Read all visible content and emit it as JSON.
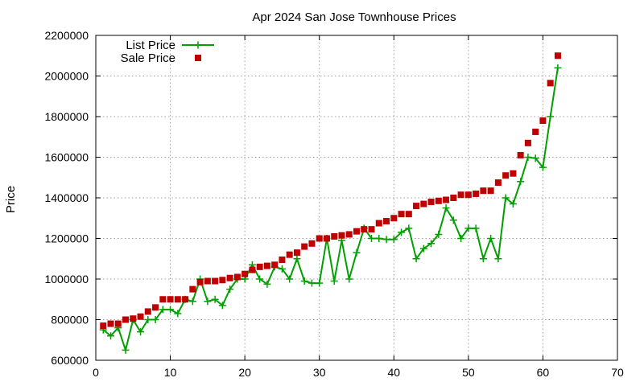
{
  "chart_data": {
    "type": "line",
    "title": "Apr 2024 San Jose Townhouse Prices",
    "xlabel": "",
    "ylabel": "Price",
    "xlim": [
      0,
      70
    ],
    "ylim": [
      600000,
      2200000
    ],
    "x_ticks": [
      0,
      10,
      20,
      30,
      40,
      50,
      60,
      70
    ],
    "y_ticks": [
      600000,
      800000,
      1000000,
      1200000,
      1400000,
      1600000,
      1800000,
      2000000,
      2200000
    ],
    "grid": true,
    "legend_position": "top-left",
    "series": [
      {
        "name": "List Price",
        "style": "linespoints",
        "color": "#00a000",
        "marker": "plus",
        "x": [
          1,
          2,
          3,
          4,
          5,
          6,
          7,
          8,
          9,
          10,
          11,
          12,
          13,
          14,
          15,
          16,
          17,
          18,
          19,
          20,
          21,
          22,
          23,
          24,
          25,
          26,
          27,
          28,
          29,
          30,
          31,
          32,
          33,
          34,
          35,
          36,
          37,
          38,
          39,
          40,
          41,
          42,
          43,
          44,
          45,
          46,
          47,
          48,
          49,
          50,
          51,
          52,
          53,
          54,
          55,
          56,
          57,
          58,
          59,
          60,
          61,
          62
        ],
        "values": [
          750000,
          720000,
          760000,
          650000,
          800000,
          740000,
          800000,
          800000,
          850000,
          850000,
          830000,
          900000,
          890000,
          1000000,
          890000,
          900000,
          870000,
          950000,
          1000000,
          1000000,
          1070000,
          1000000,
          975000,
          1060000,
          1050000,
          1000000,
          1100000,
          990000,
          980000,
          980000,
          1200000,
          990000,
          1190000,
          1000000,
          1130000,
          1250000,
          1200000,
          1200000,
          1195000,
          1195000,
          1230000,
          1250000,
          1100000,
          1150000,
          1175000,
          1220000,
          1350000,
          1290000,
          1200000,
          1250000,
          1250000,
          1100000,
          1200000,
          1100000,
          1400000,
          1370000,
          1480000,
          1600000,
          1595000,
          1550000,
          1800000,
          2040000
        ]
      },
      {
        "name": "Sale Price",
        "style": "points",
        "color": "#c00000",
        "marker": "square",
        "x": [
          1,
          2,
          3,
          4,
          5,
          6,
          7,
          8,
          9,
          10,
          11,
          12,
          13,
          14,
          15,
          16,
          17,
          18,
          19,
          20,
          21,
          22,
          23,
          24,
          25,
          26,
          27,
          28,
          29,
          30,
          31,
          32,
          33,
          34,
          35,
          36,
          37,
          38,
          39,
          40,
          41,
          42,
          43,
          44,
          45,
          46,
          47,
          48,
          49,
          50,
          51,
          52,
          53,
          54,
          55,
          56,
          57,
          58,
          59,
          60,
          61,
          62
        ],
        "values": [
          770000,
          780000,
          780000,
          800000,
          805000,
          815000,
          840000,
          860000,
          900000,
          900000,
          900000,
          900000,
          950000,
          985000,
          990000,
          990000,
          995000,
          1005000,
          1010000,
          1025000,
          1045000,
          1060000,
          1065000,
          1070000,
          1095000,
          1120000,
          1130000,
          1160000,
          1175000,
          1200000,
          1200000,
          1210000,
          1215000,
          1220000,
          1235000,
          1245000,
          1245000,
          1275000,
          1285000,
          1300000,
          1320000,
          1320000,
          1360000,
          1370000,
          1380000,
          1385000,
          1390000,
          1400000,
          1415000,
          1415000,
          1420000,
          1435000,
          1435000,
          1475000,
          1510000,
          1520000,
          1610000,
          1670000,
          1725000,
          1780000,
          1965000,
          2100000
        ]
      }
    ]
  }
}
